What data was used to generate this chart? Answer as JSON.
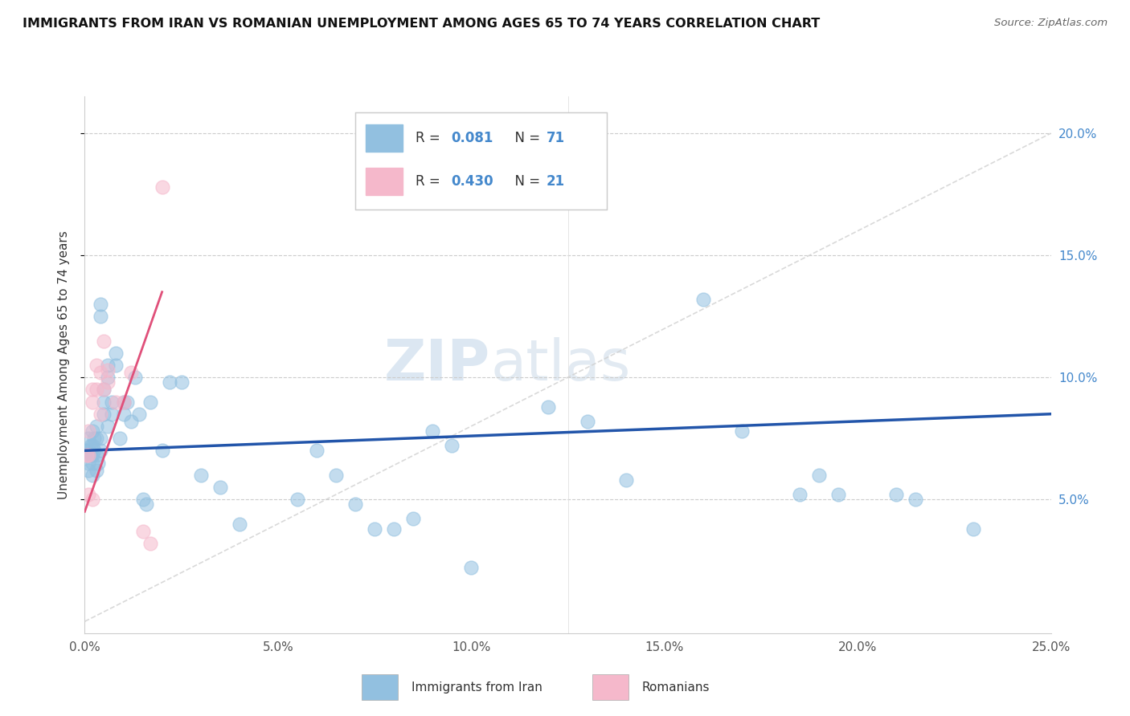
{
  "title": "IMMIGRANTS FROM IRAN VS ROMANIAN UNEMPLOYMENT AMONG AGES 65 TO 74 YEARS CORRELATION CHART",
  "source": "Source: ZipAtlas.com",
  "ylabel": "Unemployment Among Ages 65 to 74 years",
  "legend1_r": "0.081",
  "legend1_n": "71",
  "legend2_r": "0.430",
  "legend2_n": "21",
  "blue_color": "#92c0e0",
  "pink_color": "#f5b8cb",
  "blue_line_color": "#2255aa",
  "pink_line_color": "#e0507a",
  "dashed_line_color": "#d0d0d0",
  "right_axis_color": "#4488cc",
  "xlim": [
    0.0,
    0.25
  ],
  "ylim": [
    -0.005,
    0.215
  ],
  "blue_x": [
    0.0005,
    0.001,
    0.001,
    0.001,
    0.001,
    0.001,
    0.0015,
    0.0015,
    0.002,
    0.002,
    0.002,
    0.002,
    0.002,
    0.0025,
    0.0025,
    0.003,
    0.003,
    0.003,
    0.003,
    0.0035,
    0.004,
    0.004,
    0.004,
    0.004,
    0.005,
    0.005,
    0.005,
    0.006,
    0.006,
    0.006,
    0.007,
    0.007,
    0.008,
    0.008,
    0.009,
    0.01,
    0.01,
    0.011,
    0.012,
    0.013,
    0.014,
    0.015,
    0.016,
    0.017,
    0.02,
    0.022,
    0.025,
    0.03,
    0.035,
    0.04,
    0.055,
    0.06,
    0.065,
    0.07,
    0.075,
    0.08,
    0.085,
    0.09,
    0.095,
    0.1,
    0.12,
    0.13,
    0.14,
    0.16,
    0.17,
    0.185,
    0.19,
    0.195,
    0.21,
    0.215,
    0.23
  ],
  "blue_y": [
    0.07,
    0.075,
    0.07,
    0.068,
    0.065,
    0.062,
    0.072,
    0.068,
    0.078,
    0.072,
    0.068,
    0.065,
    0.06,
    0.075,
    0.07,
    0.08,
    0.075,
    0.068,
    0.062,
    0.065,
    0.13,
    0.125,
    0.075,
    0.07,
    0.095,
    0.09,
    0.085,
    0.105,
    0.1,
    0.08,
    0.09,
    0.085,
    0.11,
    0.105,
    0.075,
    0.09,
    0.085,
    0.09,
    0.082,
    0.1,
    0.085,
    0.05,
    0.048,
    0.09,
    0.07,
    0.098,
    0.098,
    0.06,
    0.055,
    0.04,
    0.05,
    0.07,
    0.06,
    0.048,
    0.038,
    0.038,
    0.042,
    0.078,
    0.072,
    0.022,
    0.088,
    0.082,
    0.058,
    0.132,
    0.078,
    0.052,
    0.06,
    0.052,
    0.052,
    0.05,
    0.038
  ],
  "pink_x": [
    0.0005,
    0.001,
    0.001,
    0.001,
    0.002,
    0.002,
    0.002,
    0.003,
    0.003,
    0.004,
    0.004,
    0.005,
    0.005,
    0.006,
    0.006,
    0.008,
    0.01,
    0.012,
    0.015,
    0.017,
    0.02
  ],
  "pink_y": [
    0.068,
    0.078,
    0.068,
    0.052,
    0.095,
    0.09,
    0.05,
    0.105,
    0.095,
    0.102,
    0.085,
    0.115,
    0.095,
    0.103,
    0.098,
    0.09,
    0.09,
    0.102,
    0.037,
    0.032,
    0.178
  ]
}
